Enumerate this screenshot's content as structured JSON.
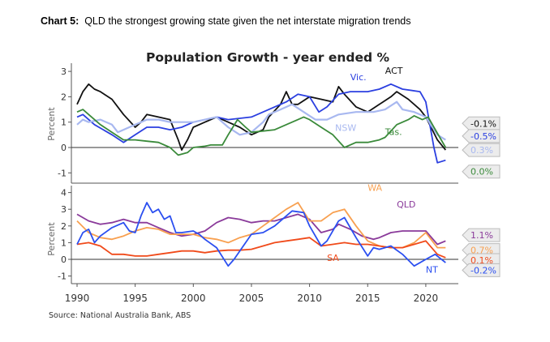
{
  "heading": {
    "prefix": "Chart 5:",
    "text": "QLD the strongest growing state given the net interstate migration trends"
  },
  "chart_data": [
    {
      "type": "line",
      "title": "Population Growth - year ended %",
      "ylabel": "Percent",
      "xlim": [
        1990,
        2022
      ],
      "ylim": [
        -1.3,
        3.3
      ],
      "yticks": [
        3,
        2,
        1,
        0,
        -1
      ],
      "series": [
        {
          "name": "ACT",
          "color": "#111111",
          "end_label": "-0.1%",
          "x": [
            1990,
            1990.5,
            1991,
            1991.5,
            1992,
            1993,
            1994,
            1995,
            1995.5,
            1996,
            1997,
            1998,
            1998.7,
            1999,
            1999.5,
            2000,
            2001,
            2002,
            2003,
            2004,
            2005,
            2006,
            2006.5,
            2007.5,
            2008,
            2008.5,
            2009,
            2010,
            2011,
            2012,
            2012.5,
            2013,
            2014,
            2015,
            2016,
            2017,
            2017.5,
            2018.5,
            2019.5,
            2020,
            2021,
            2021.7
          ],
          "y": [
            1.7,
            2.2,
            2.5,
            2.3,
            2.2,
            1.9,
            1.3,
            0.8,
            1.0,
            1.3,
            1.2,
            1.1,
            0.3,
            -0.1,
            0.3,
            0.8,
            1.0,
            1.2,
            1.0,
            0.8,
            0.5,
            0.7,
            1.2,
            1.7,
            2.2,
            1.7,
            1.7,
            2.0,
            1.9,
            1.8,
            2.4,
            2.1,
            1.6,
            1.4,
            1.7,
            2.0,
            2.2,
            1.9,
            1.5,
            1.2,
            0.3,
            -0.1
          ]
        },
        {
          "name": "Vic.",
          "color": "#2b3fe0",
          "end_label": "-0.5%",
          "x": [
            1990,
            1990.5,
            1991.5,
            1993,
            1994,
            1995,
            1996,
            1997,
            1998,
            1999,
            2000,
            2001,
            2002,
            2003,
            2004,
            2005,
            2006,
            2007,
            2008,
            2009,
            2010,
            2010.8,
            2011.5,
            2012.5,
            2013.5,
            2015,
            2016,
            2017,
            2018,
            2019.5,
            2020,
            2020.7,
            2021,
            2021.7
          ],
          "y": [
            1.2,
            1.3,
            0.9,
            0.5,
            0.2,
            0.5,
            0.8,
            0.8,
            0.7,
            0.8,
            1.0,
            1.1,
            1.2,
            1.1,
            1.15,
            1.2,
            1.4,
            1.6,
            1.8,
            2.1,
            2.0,
            1.4,
            1.6,
            2.1,
            2.2,
            2.2,
            2.3,
            2.5,
            2.3,
            2.2,
            1.8,
            0.0,
            -0.6,
            -0.5
          ]
        },
        {
          "name": "NSW",
          "color": "#a8b8f0",
          "end_label": "0.3%",
          "x": [
            1990,
            1990.5,
            1991,
            1992,
            1993,
            1993.5,
            1994,
            1995,
            1996,
            1997,
            1998,
            1999,
            2000,
            2001,
            2002,
            2003,
            2004,
            2005,
            2006,
            2006.5,
            2007.5,
            2008.5,
            2009.5,
            2010.5,
            2011.5,
            2012.5,
            2014,
            2015.5,
            2016.5,
            2017.5,
            2018,
            2019,
            2020,
            2021,
            2021.7
          ],
          "y": [
            0.9,
            1.1,
            1.0,
            1.1,
            0.9,
            0.6,
            0.7,
            0.9,
            1.1,
            1.1,
            1.0,
            1.0,
            1.0,
            1.1,
            1.2,
            0.8,
            0.5,
            0.6,
            1.0,
            1.3,
            1.5,
            1.7,
            1.4,
            1.1,
            1.1,
            1.3,
            1.4,
            1.4,
            1.5,
            1.8,
            1.5,
            1.4,
            1.2,
            0.5,
            0.3
          ]
        },
        {
          "name": "Tas.",
          "color": "#3a8a3a",
          "end_label": "0.0%",
          "x": [
            1990,
            1990.5,
            1991,
            1992,
            1993,
            1994,
            1995,
            1996,
            1997,
            1998,
            1998.7,
            1999.5,
            2000,
            2001,
            2001.5,
            2002,
            2002.5,
            2003,
            2003.8,
            2004.5,
            2005,
            2006,
            2007,
            2008,
            2009,
            2009.5,
            2010,
            2011,
            2012,
            2013,
            2014,
            2015,
            2016,
            2016.5,
            2017.5,
            2018.5,
            2019,
            2019.7,
            2020.2,
            2020.7,
            2021.7
          ],
          "y": [
            1.4,
            1.5,
            1.3,
            0.9,
            0.6,
            0.3,
            0.3,
            0.25,
            0.2,
            0.0,
            -0.3,
            -0.2,
            0.0,
            0.05,
            0.1,
            0.1,
            0.1,
            0.5,
            1.1,
            0.8,
            0.6,
            0.65,
            0.7,
            0.9,
            1.1,
            1.2,
            1.1,
            0.8,
            0.5,
            0.0,
            0.2,
            0.2,
            0.3,
            0.4,
            0.9,
            1.1,
            1.25,
            1.1,
            1.2,
            0.8,
            0.0
          ]
        }
      ]
    },
    {
      "type": "line",
      "ylabel": "Percent",
      "xlim": [
        1990,
        2022
      ],
      "ylim": [
        -1.4,
        4.3
      ],
      "yticks": [
        4,
        3,
        2,
        1,
        0,
        -1
      ],
      "xticks": [
        "1990",
        "1995",
        "2000",
        "2005",
        "2010",
        "2015",
        "2020"
      ],
      "series": [
        {
          "name": "QLD",
          "color": "#8a3a9a",
          "end_label": "1.1%",
          "x": [
            1990,
            1991,
            1992,
            1993,
            1994,
            1995,
            1996,
            1997,
            1998,
            1999,
            2000,
            2001,
            2002,
            2003,
            2004,
            2005,
            2006,
            2007,
            2008,
            2009,
            2010,
            2011,
            2012,
            2012.5,
            2013.5,
            2014.5,
            2015.5,
            2016,
            2017,
            2018,
            2019,
            2020,
            2021,
            2021.7
          ],
          "y": [
            2.7,
            2.3,
            2.1,
            2.2,
            2.4,
            2.2,
            2.2,
            1.9,
            1.6,
            1.4,
            1.5,
            1.7,
            2.2,
            2.5,
            2.4,
            2.2,
            2.3,
            2.3,
            2.5,
            2.7,
            2.4,
            1.6,
            1.8,
            2.1,
            1.8,
            1.4,
            1.2,
            1.3,
            1.6,
            1.7,
            1.7,
            1.7,
            0.9,
            1.1
          ]
        },
        {
          "name": "WA",
          "color": "#f8a050",
          "end_label": "0.7%",
          "x": [
            1990,
            1991,
            1992,
            1993,
            1994,
            1995,
            1996,
            1997,
            1998,
            1999,
            2000,
            2001,
            2002,
            2003,
            2004,
            2005,
            2006,
            2007,
            2008,
            2009,
            2010,
            2011,
            2012,
            2013,
            2014,
            2015,
            2016,
            2017,
            2018,
            2019,
            2020,
            2021,
            2021.7
          ],
          "y": [
            2.3,
            1.6,
            1.3,
            1.2,
            1.4,
            1.7,
            1.9,
            1.8,
            1.5,
            1.5,
            1.5,
            1.3,
            1.2,
            1.0,
            1.3,
            1.5,
            2.0,
            2.5,
            3.0,
            3.4,
            2.3,
            2.3,
            2.8,
            3.0,
            2.0,
            1.1,
            0.8,
            0.7,
            0.7,
            1.0,
            1.6,
            0.7,
            0.7
          ]
        },
        {
          "name": "SA",
          "color": "#f04a1a",
          "end_label": "0.1%",
          "x": [
            1990,
            1991,
            1992,
            1993,
            1994,
            1995,
            1996,
            1997,
            1998,
            1999,
            2000,
            2001,
            2002,
            2003,
            2004,
            2005,
            2006,
            2007,
            2008,
            2009,
            2010,
            2011,
            2012,
            2013,
            2014,
            2015,
            2016,
            2017,
            2018,
            2019,
            2020,
            2021,
            2021.7
          ],
          "y": [
            0.9,
            1.0,
            0.8,
            0.3,
            0.3,
            0.2,
            0.2,
            0.3,
            0.4,
            0.5,
            0.5,
            0.4,
            0.5,
            0.55,
            0.55,
            0.6,
            0.8,
            1.0,
            1.1,
            1.2,
            1.3,
            0.8,
            0.9,
            1.0,
            0.9,
            0.9,
            0.8,
            0.7,
            0.7,
            0.9,
            1.1,
            0.3,
            0.1
          ]
        },
        {
          "name": "NT",
          "color": "#2b4ff0",
          "end_label": "-0.2%",
          "x": [
            1990,
            1990.5,
            1991,
            1991.5,
            1992,
            1993,
            1994,
            1994.5,
            1995,
            1995.5,
            1996,
            1996.5,
            1997,
            1997.5,
            1998,
            1998.5,
            1999,
            2000,
            2000.5,
            2001,
            2002,
            2003,
            2003.5,
            2004,
            2005,
            2006,
            2007,
            2008,
            2008.5,
            2009.5,
            2010,
            2011,
            2011.5,
            2012.5,
            2013,
            2014,
            2015,
            2015.5,
            2016,
            2017,
            2018,
            2019,
            2020,
            2020.8,
            2021.7
          ],
          "y": [
            0.9,
            1.6,
            1.8,
            1.0,
            1.4,
            1.9,
            2.2,
            1.7,
            1.6,
            2.6,
            3.4,
            2.8,
            3.0,
            2.4,
            2.6,
            1.6,
            1.6,
            1.7,
            1.5,
            1.2,
            0.7,
            -0.4,
            0.0,
            0.5,
            1.5,
            1.6,
            2.0,
            2.6,
            2.9,
            2.8,
            2.0,
            0.8,
            1.1,
            2.3,
            2.5,
            1.3,
            0.2,
            0.7,
            0.6,
            0.8,
            0.3,
            -0.4,
            0.0,
            0.3,
            -0.2
          ]
        }
      ]
    }
  ],
  "source": "Source: National Australia Bank, ABS"
}
